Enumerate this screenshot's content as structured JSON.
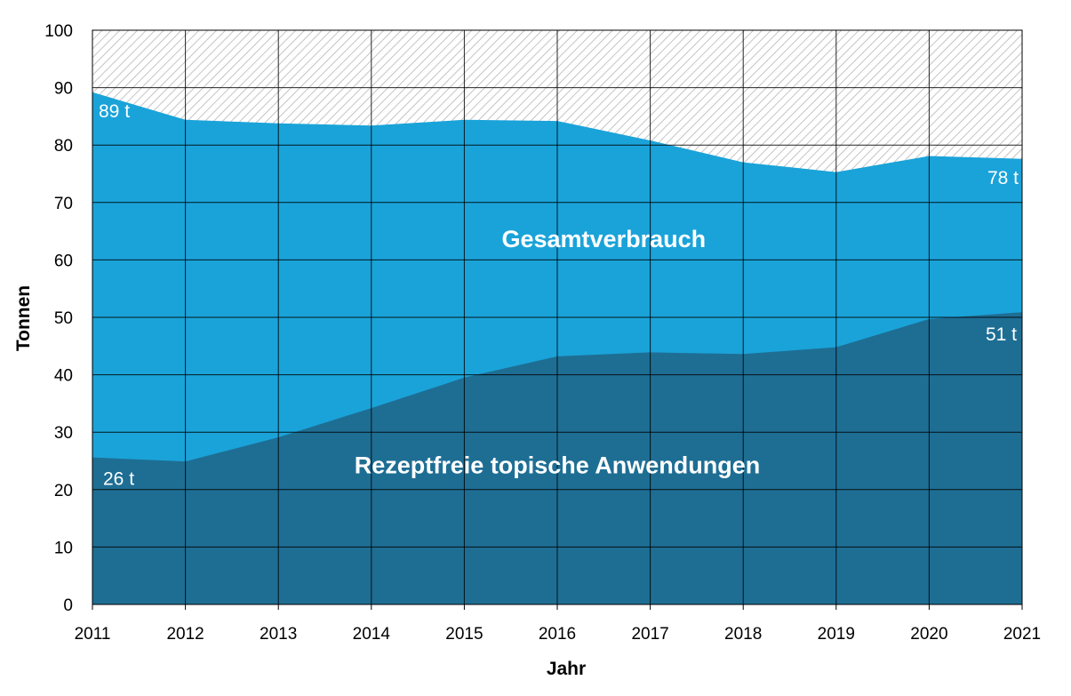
{
  "chart_data": {
    "type": "area",
    "x": [
      2011,
      2012,
      2013,
      2014,
      2015,
      2016,
      2017,
      2018,
      2019,
      2020,
      2021
    ],
    "series": [
      {
        "name": "Gesamtverbrauch",
        "values": [
          89.2,
          84.4,
          83.8,
          83.4,
          84.4,
          84.2,
          80.8,
          77.0,
          75.3,
          78.1,
          77.6
        ],
        "color": "#1aa3d9"
      },
      {
        "name": "Rezeptfreie topische Anwendungen",
        "values": [
          25.6,
          24.9,
          29.1,
          34.2,
          39.5,
          43.2,
          43.9,
          43.6,
          44.8,
          49.7,
          50.9
        ],
        "color": "#1e6e94"
      }
    ],
    "annotations": [
      {
        "text": "89 t",
        "year": 2011,
        "value": 89.2
      },
      {
        "text": "78 t",
        "year": 2021,
        "value": 77.6
      },
      {
        "text": "51 t",
        "year": 2021,
        "value": 50.9
      },
      {
        "text": "26 t",
        "year": 2011,
        "value": 25.6
      }
    ],
    "xlabel": "Jahr",
    "ylabel": "Tonnen",
    "xlim": [
      2011,
      2021
    ],
    "ylim": [
      0,
      100
    ],
    "yticks": [
      0,
      10,
      20,
      30,
      40,
      50,
      60,
      70,
      80,
      90,
      100
    ],
    "xticks": [
      "2011",
      "2012",
      "2013",
      "2014",
      "2015",
      "2016",
      "2017",
      "2018",
      "2019",
      "2020",
      "2021"
    ],
    "grid": true,
    "background": "hatched"
  }
}
